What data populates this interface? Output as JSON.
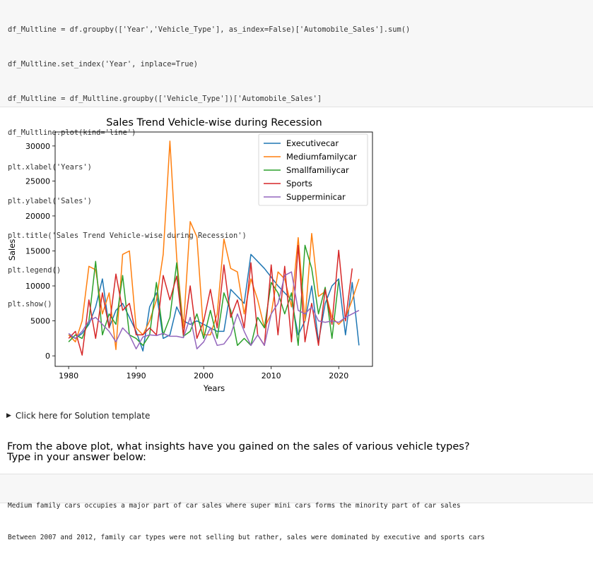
{
  "code_cell": {
    "lines": [
      "df_Multline = df.groupby(['Year','Vehicle_Type'], as_index=False)['Automobile_Sales'].sum()",
      "df_Multline.set_index('Year', inplace=True)",
      "df_Multline = df_Multline.groupby(['Vehicle_Type'])['Automobile_Sales']",
      "df_Multline.plot(kind='line')",
      "plt.xlabel('Years')",
      "plt.ylabel('Sales')",
      "plt.title('Sales Trend Vehicle-wise during Recession')",
      "plt.legend()",
      "plt.show()"
    ]
  },
  "chart_data": {
    "type": "line",
    "title": "Sales Trend Vehicle-wise during Recession",
    "xlabel": "Years",
    "ylabel": "Sales",
    "xlim": [
      1978,
      2025
    ],
    "ylim": [
      -1500,
      32000
    ],
    "xticks": [
      1980,
      1990,
      2000,
      2010,
      2020
    ],
    "yticks": [
      0,
      5000,
      10000,
      15000,
      20000,
      25000,
      30000
    ],
    "legend_position": "top-right",
    "series": [
      {
        "name": "Executivecar",
        "color": "#1f77b4",
        "points": [
          [
            1980,
            3000
          ],
          [
            1981,
            2500
          ],
          [
            1982,
            3200
          ],
          [
            1983,
            4500
          ],
          [
            1984,
            7000
          ],
          [
            1985,
            11000
          ],
          [
            1986,
            4000
          ],
          [
            1987,
            6500
          ],
          [
            1988,
            7500
          ],
          [
            1989,
            5500
          ],
          [
            1990,
            3500
          ],
          [
            1991,
            700
          ],
          [
            1992,
            7000
          ],
          [
            1993,
            9000
          ],
          [
            1994,
            2500
          ],
          [
            1995,
            3000
          ],
          [
            1996,
            7000
          ],
          [
            1997,
            5000
          ],
          [
            1998,
            4500
          ],
          [
            1999,
            5000
          ],
          [
            2000,
            4500
          ],
          [
            2001,
            4000
          ],
          [
            2002,
            3500
          ],
          [
            2003,
            3500
          ],
          [
            2004,
            9500
          ],
          [
            2005,
            8500
          ],
          [
            2006,
            7500
          ],
          [
            2007,
            14500
          ],
          [
            2009,
            12500
          ],
          [
            2011,
            10000
          ],
          [
            2013,
            8000
          ],
          [
            2014,
            3000
          ],
          [
            2015,
            5000
          ],
          [
            2016,
            10000
          ],
          [
            2017,
            2000
          ],
          [
            2018,
            7500
          ],
          [
            2019,
            10000
          ],
          [
            2020,
            11000
          ],
          [
            2021,
            3000
          ],
          [
            2022,
            10500
          ],
          [
            2023,
            1500
          ]
        ]
      },
      {
        "name": "Mediumfamilycar",
        "color": "#ff7f0e",
        "points": [
          [
            1980,
            3000
          ],
          [
            1981,
            2000
          ],
          [
            1982,
            5000
          ],
          [
            1983,
            12800
          ],
          [
            1984,
            12300
          ],
          [
            1985,
            6000
          ],
          [
            1986,
            9000
          ],
          [
            1987,
            900
          ],
          [
            1988,
            14500
          ],
          [
            1989,
            15000
          ],
          [
            1990,
            4000
          ],
          [
            1991,
            3000
          ],
          [
            1992,
            5000
          ],
          [
            1993,
            8000
          ],
          [
            1994,
            14500
          ],
          [
            1995,
            30700
          ],
          [
            1996,
            14000
          ],
          [
            1997,
            4000
          ],
          [
            1998,
            19200
          ],
          [
            1999,
            17000
          ],
          [
            2000,
            3000
          ],
          [
            2001,
            3000
          ],
          [
            2002,
            6000
          ],
          [
            2003,
            16700
          ],
          [
            2004,
            12500
          ],
          [
            2005,
            12000
          ],
          [
            2006,
            6000
          ],
          [
            2007,
            11000
          ],
          [
            2008,
            8000
          ],
          [
            2009,
            4000
          ],
          [
            2010,
            6000
          ],
          [
            2011,
            12000
          ],
          [
            2012,
            11000
          ],
          [
            2013,
            7000
          ],
          [
            2014,
            16900
          ],
          [
            2015,
            5000
          ],
          [
            2016,
            17500
          ],
          [
            2017,
            8500
          ],
          [
            2018,
            9200
          ],
          [
            2019,
            5500
          ],
          [
            2020,
            4500
          ],
          [
            2021,
            5500
          ],
          [
            2022,
            8000
          ],
          [
            2023,
            11000
          ]
        ]
      },
      {
        "name": "Smallfamiliycar",
        "color": "#2ca02c",
        "points": [
          [
            1980,
            2000
          ],
          [
            1981,
            3000
          ],
          [
            1982,
            2500
          ],
          [
            1983,
            5000
          ],
          [
            1984,
            13500
          ],
          [
            1985,
            3000
          ],
          [
            1986,
            6000
          ],
          [
            1987,
            4500
          ],
          [
            1988,
            11500
          ],
          [
            1989,
            3000
          ],
          [
            1990,
            2500
          ],
          [
            1991,
            1500
          ],
          [
            1992,
            3000
          ],
          [
            1993,
            10500
          ],
          [
            1994,
            3000
          ],
          [
            1995,
            5500
          ],
          [
            1996,
            13300
          ],
          [
            1997,
            2800
          ],
          [
            1998,
            3500
          ],
          [
            1999,
            6000
          ],
          [
            2000,
            2500
          ],
          [
            2001,
            6500
          ],
          [
            2002,
            2500
          ],
          [
            2003,
            9000
          ],
          [
            2004,
            6500
          ],
          [
            2005,
            1500
          ],
          [
            2006,
            2500
          ],
          [
            2007,
            1500
          ],
          [
            2008,
            5500
          ],
          [
            2009,
            4000
          ],
          [
            2010,
            10500
          ],
          [
            2011,
            9000
          ],
          [
            2012,
            6000
          ],
          [
            2013,
            9000
          ],
          [
            2014,
            1500
          ],
          [
            2015,
            15800
          ],
          [
            2016,
            12500
          ],
          [
            2017,
            6000
          ],
          [
            2018,
            9800
          ],
          [
            2019,
            2500
          ],
          [
            2020,
            10800
          ]
        ]
      },
      {
        "name": "Sports",
        "color": "#d62728",
        "points": [
          [
            1980,
            2500
          ],
          [
            1981,
            3500
          ],
          [
            1982,
            100
          ],
          [
            1983,
            8000
          ],
          [
            1984,
            2500
          ],
          [
            1985,
            9000
          ],
          [
            1986,
            4000
          ],
          [
            1987,
            11700
          ],
          [
            1988,
            6500
          ],
          [
            1989,
            7500
          ],
          [
            1990,
            3000
          ],
          [
            1991,
            3000
          ],
          [
            1992,
            4000
          ],
          [
            1993,
            3000
          ],
          [
            1994,
            11500
          ],
          [
            1995,
            8000
          ],
          [
            1996,
            11400
          ],
          [
            1997,
            3000
          ],
          [
            1998,
            10000
          ],
          [
            1999,
            2500
          ],
          [
            2000,
            5000
          ],
          [
            2001,
            9500
          ],
          [
            2002,
            4000
          ],
          [
            2003,
            13000
          ],
          [
            2004,
            5500
          ],
          [
            2005,
            8000
          ],
          [
            2006,
            4000
          ],
          [
            2007,
            13300
          ],
          [
            2008,
            3000
          ],
          [
            2009,
            1500
          ],
          [
            2010,
            13000
          ],
          [
            2011,
            3000
          ],
          [
            2012,
            12800
          ],
          [
            2013,
            2000
          ],
          [
            2014,
            15800
          ],
          [
            2015,
            2000
          ],
          [
            2016,
            7500
          ],
          [
            2017,
            1500
          ],
          [
            2018,
            9500
          ],
          [
            2019,
            4500
          ],
          [
            2020,
            15100
          ],
          [
            2021,
            5000
          ],
          [
            2022,
            12500
          ]
        ]
      },
      {
        "name": "Supperminicar",
        "color": "#9467bd",
        "points": [
          [
            1980,
            3200
          ],
          [
            1981,
            2500
          ],
          [
            1982,
            3500
          ],
          [
            1983,
            5000
          ],
          [
            1984,
            5500
          ],
          [
            1985,
            4500
          ],
          [
            1986,
            3500
          ],
          [
            1987,
            2000
          ],
          [
            1988,
            4000
          ],
          [
            1989,
            3000
          ],
          [
            1990,
            1000
          ],
          [
            1991,
            2700
          ],
          [
            1992,
            3000
          ],
          [
            1993,
            2900
          ],
          [
            1994,
            3200
          ],
          [
            1995,
            2800
          ],
          [
            1996,
            2800
          ],
          [
            1997,
            2600
          ],
          [
            1998,
            5500
          ],
          [
            1999,
            1000
          ],
          [
            2000,
            2000
          ],
          [
            2001,
            4000
          ],
          [
            2002,
            1500
          ],
          [
            2003,
            1700
          ],
          [
            2004,
            3000
          ],
          [
            2005,
            6000
          ],
          [
            2006,
            3500
          ],
          [
            2007,
            1500
          ],
          [
            2008,
            3000
          ],
          [
            2009,
            1500
          ],
          [
            2010,
            6000
          ],
          [
            2011,
            7500
          ],
          [
            2012,
            11500
          ],
          [
            2013,
            12000
          ],
          [
            2014,
            6500
          ],
          [
            2015,
            6000
          ],
          [
            2016,
            7000
          ],
          [
            2017,
            5000
          ],
          [
            2018,
            4800
          ],
          [
            2019,
            5000
          ],
          [
            2020,
            4800
          ],
          [
            2021,
            5500
          ],
          [
            2022,
            6000
          ],
          [
            2023,
            6500
          ]
        ]
      }
    ]
  },
  "solution_toggle": {
    "label": "Click here for Solution template"
  },
  "question": {
    "line1": "From the above plot, what insights have you gained on the sales of various vehicle types?",
    "line2": "Type in your answer below:"
  },
  "answer": {
    "line1": "Medium family cars occupies a major part of car sales where super mini cars forms the minority part of car sales",
    "line2": "Between 2007 and 2012, family car types were not selling but rather, sales were dominated by executive and sports cars"
  }
}
